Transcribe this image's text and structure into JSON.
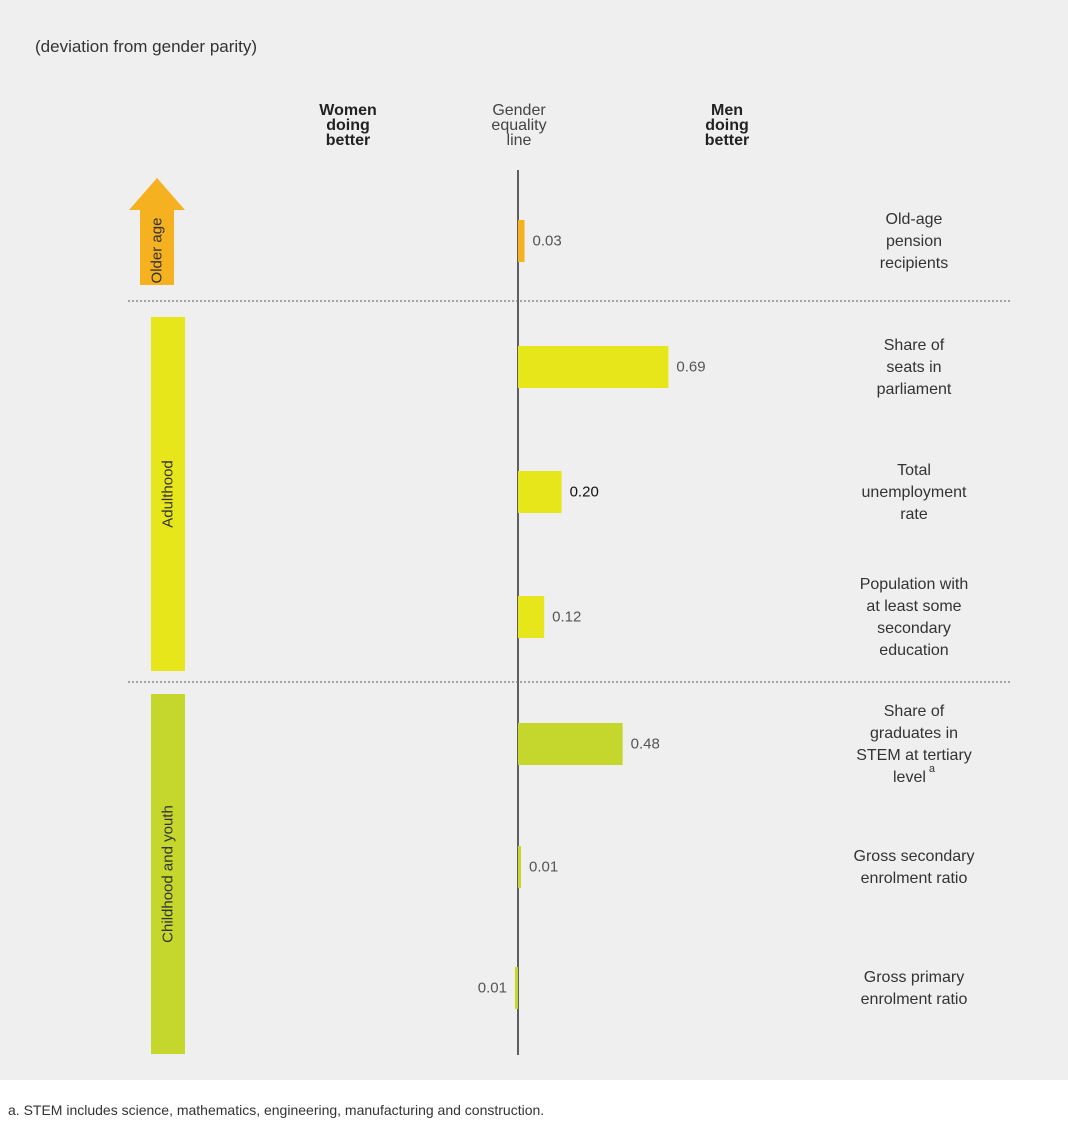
{
  "subtitle": "(deviation from gender parity)",
  "headers": {
    "women": [
      "Women",
      "doing",
      "better"
    ],
    "equality": [
      "Gender",
      "equality",
      "line"
    ],
    "men": [
      "Men",
      "doing",
      "better"
    ]
  },
  "footnote": "a. STEM includes science, mathematics, engineering, manufacturing and construction.",
  "colors": {
    "older_age": "#f5b120",
    "adulthood": "#e7e61b",
    "childhood": "#c5d72d",
    "axis": "#222222",
    "divider": "#777777"
  },
  "chart_data": {
    "type": "bar",
    "orientation": "horizontal",
    "groups": [
      {
        "name": "Older age",
        "color_key": "older_age",
        "arrow": true,
        "items": [
          {
            "category_lines": [
              "Old-age",
              "pension",
              "recipients"
            ],
            "value": 0.03,
            "label": "0.03"
          }
        ]
      },
      {
        "name": "Adulthood",
        "color_key": "adulthood",
        "arrow": false,
        "items": [
          {
            "category_lines": [
              "Share of",
              "seats in",
              "parliament"
            ],
            "value": 0.69,
            "label": "0.69"
          },
          {
            "category_lines": [
              "Total",
              "unemployment",
              "rate"
            ],
            "value": 0.2,
            "label": "0.20"
          },
          {
            "category_lines": [
              "Population with",
              "at least some",
              "secondary",
              "education"
            ],
            "value": 0.12,
            "label": "0.12"
          }
        ]
      },
      {
        "name": "Childhood and youth",
        "color_key": "childhood",
        "arrow": false,
        "items": [
          {
            "category_lines": [
              "Share of",
              "graduates in",
              "STEM at tertiary",
              "level"
            ],
            "superscript": "a",
            "value": 0.48,
            "label": "0.48"
          },
          {
            "category_lines": [
              "Gross secondary",
              "enrolment ratio"
            ],
            "value": 0.01,
            "label": "0.01"
          },
          {
            "category_lines": [
              "Gross primary",
              "enrolment ratio"
            ],
            "value": -0.01,
            "label": "0.01"
          }
        ]
      }
    ]
  }
}
